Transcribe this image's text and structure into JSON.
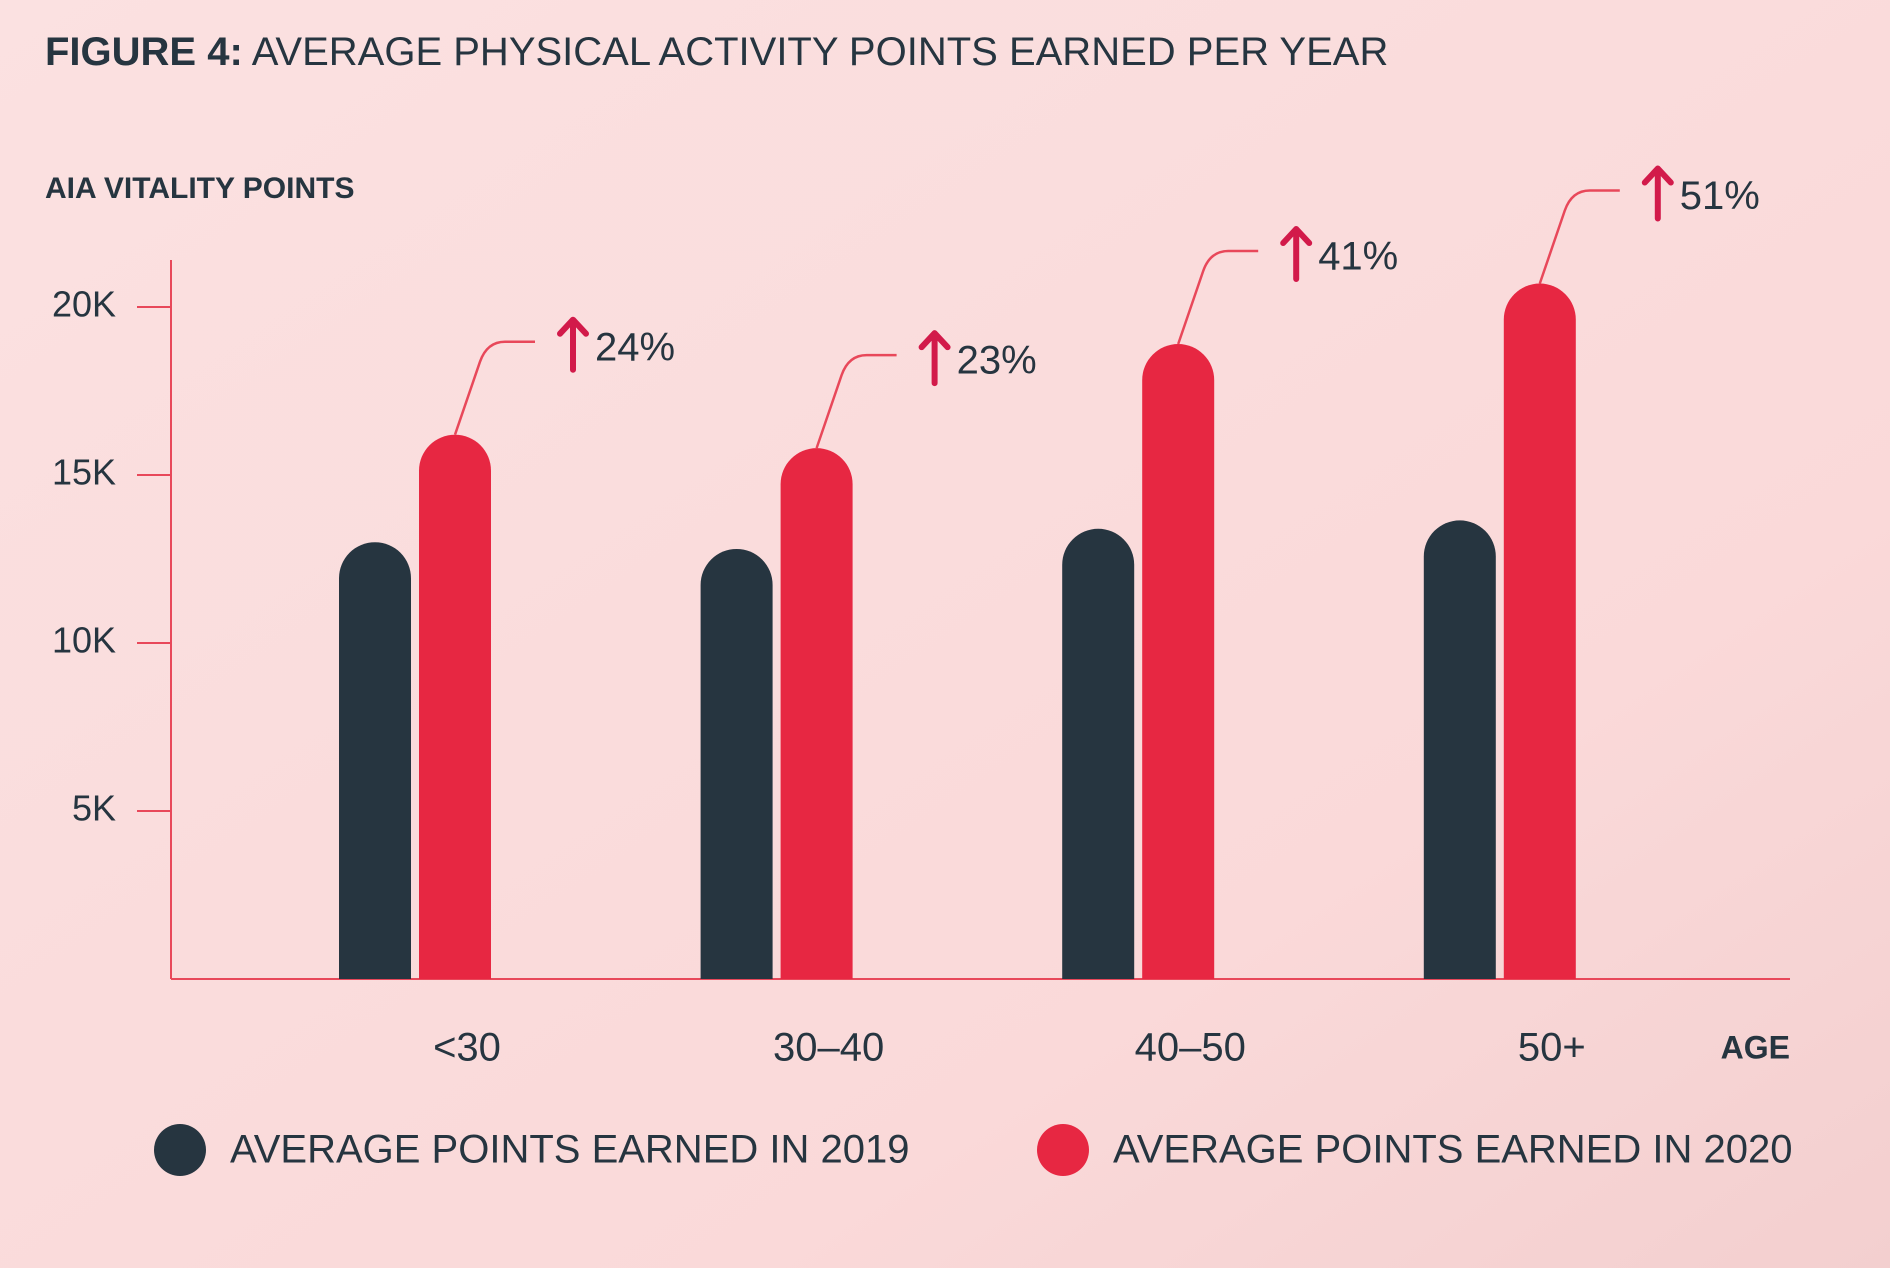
{
  "chart_data": {
    "type": "bar",
    "figure_label": "FIGURE 4:",
    "title": "AVERAGE PHYSICAL ACTIVITY POINTS EARNED PER YEAR",
    "y_label": "AIA VITALITY POINTS",
    "x_label": "AGE",
    "categories": [
      "<30",
      "30–40",
      "40–50",
      "50+"
    ],
    "series": [
      {
        "name": "AVERAGE POINTS EARNED IN 2019",
        "color": "#263540",
        "values": [
          13000,
          12800,
          13400,
          13650
        ]
      },
      {
        "name": "AVERAGE POINTS EARNED IN 2020",
        "color": "#e72742",
        "values": [
          16200,
          15800,
          18900,
          20700
        ]
      }
    ],
    "annotations": [
      "24%",
      "23%",
      "41%",
      "51%"
    ],
    "ylim": [
      0,
      21400
    ],
    "yticks": [
      {
        "value": 5000,
        "label": "5K"
      },
      {
        "value": 10000,
        "label": "10K"
      },
      {
        "value": 15000,
        "label": "15K"
      },
      {
        "value": 20000,
        "label": "20K"
      }
    ],
    "grid": false
  }
}
